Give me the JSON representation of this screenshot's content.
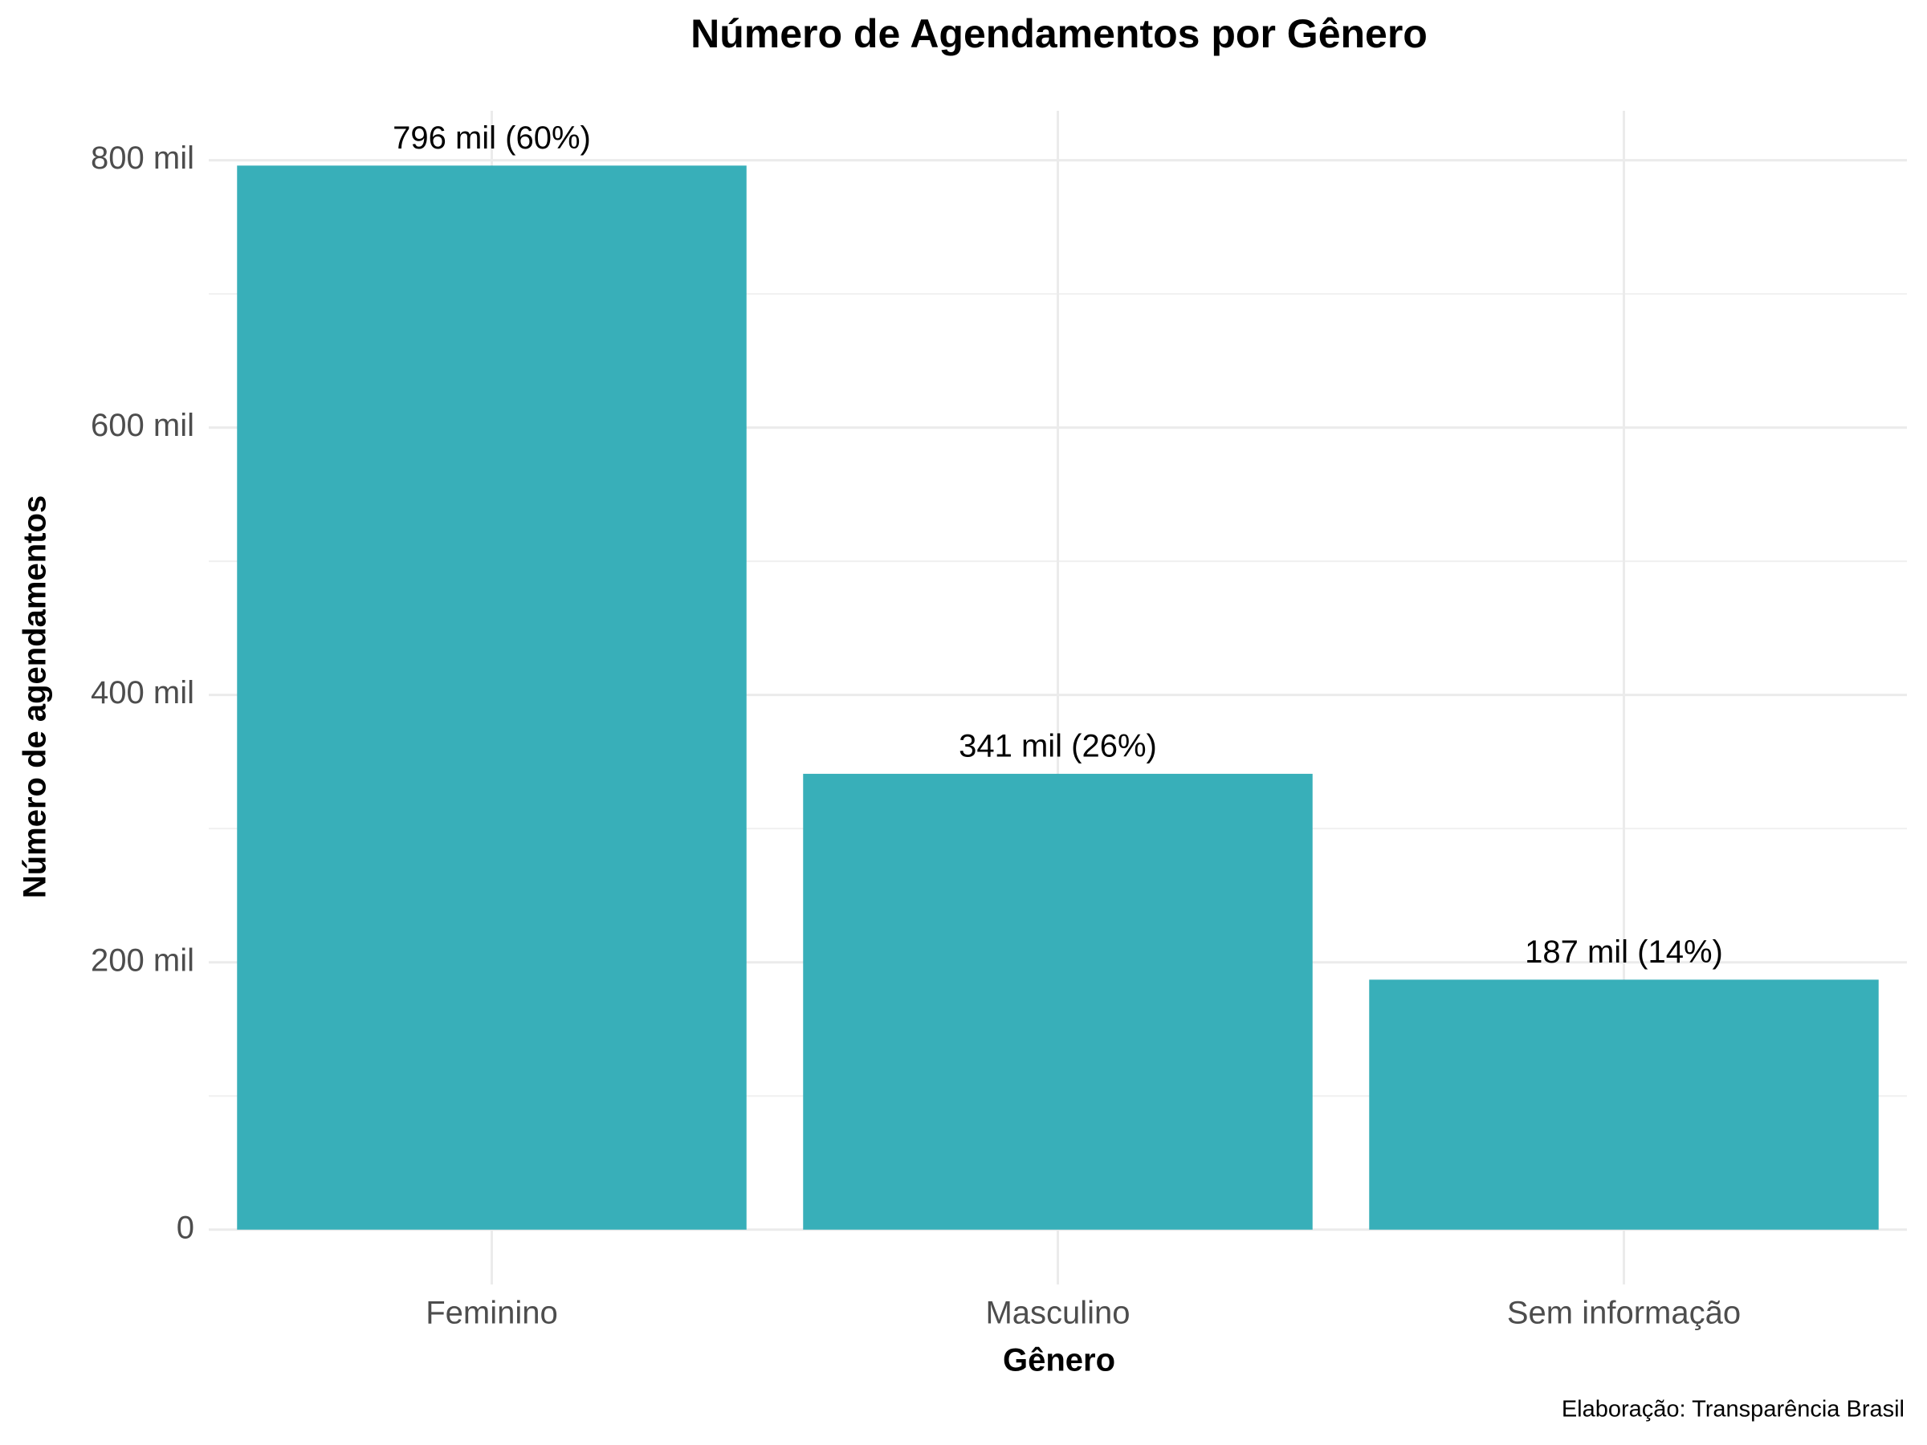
{
  "chart_data": {
    "type": "bar",
    "title": "Número de Agendamentos por Gênero",
    "x_label": "Gênero",
    "y_label": "Número de agendamentos",
    "caption": "Elaboração: Transparência Brasil",
    "categories": [
      "Feminino",
      "Masculino",
      "Sem informação"
    ],
    "values": [
      796000,
      341000,
      187000
    ],
    "value_labels": [
      "796 mil (60%)",
      "341 mil (26%)",
      "187 mil (14%)"
    ],
    "color": "#38afb9",
    "ylim": [
      -41000,
      837000
    ],
    "yticks": [
      0,
      {
        "value": 200000,
        "label": "200 mil"
      },
      {
        "value": 400000,
        "label": "400 mil"
      },
      {
        "value": 600000,
        "label": "600 mil"
      },
      {
        "value": 800000,
        "label": "800 mil"
      }
    ],
    "minor_yticks": [
      100000,
      300000,
      500000,
      700000
    ],
    "grid": true
  }
}
